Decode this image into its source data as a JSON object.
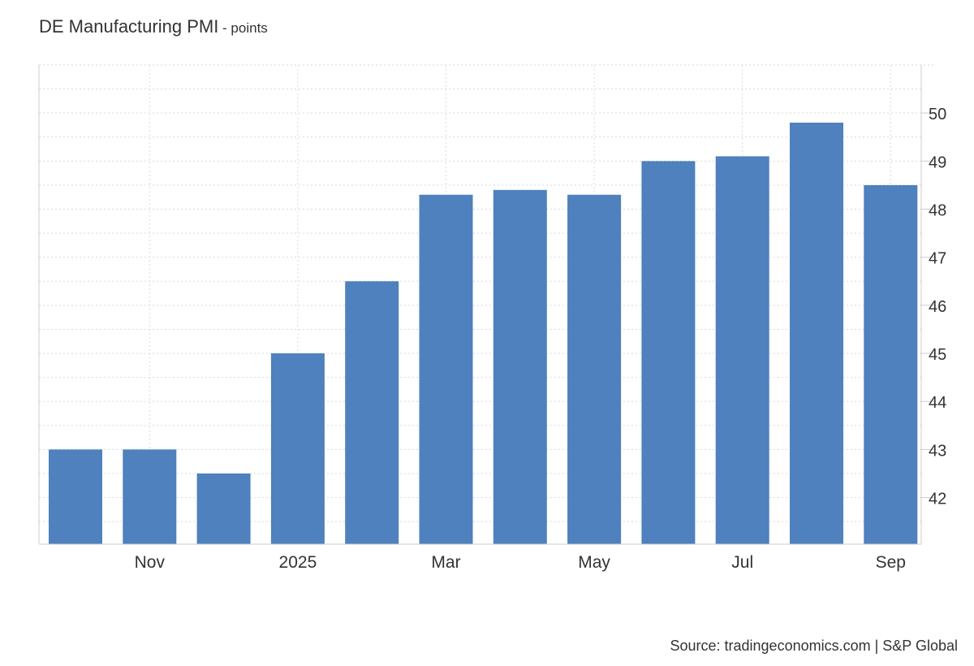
{
  "chart_data": {
    "type": "bar",
    "title": "DE Manufacturing PMI",
    "subtitle": "points",
    "xlabel": "",
    "ylabel": "",
    "categories": [
      "Oct 2024",
      "Nov 2024",
      "Dec 2024",
      "Jan 2025",
      "Feb 2025",
      "Mar 2025",
      "Apr 2025",
      "May 2025",
      "Jun 2025",
      "Jul 2025",
      "Aug 2025",
      "Sep 2025"
    ],
    "values": [
      43.0,
      43.0,
      42.5,
      45.0,
      46.5,
      48.3,
      48.4,
      48.3,
      49.0,
      49.1,
      49.8,
      48.5
    ],
    "x_tick_labels": [
      {
        "category": "Nov 2024",
        "label": "Nov"
      },
      {
        "category": "Jan 2025",
        "label": "2025"
      },
      {
        "category": "Mar 2025",
        "label": "Mar"
      },
      {
        "category": "May 2025",
        "label": "May"
      },
      {
        "category": "Jul 2025",
        "label": "Jul"
      },
      {
        "category": "Sep 2025",
        "label": "Sep"
      }
    ],
    "y_ticks": [
      42,
      43,
      44,
      45,
      46,
      47,
      48,
      49,
      50
    ],
    "ylim": [
      41.03,
      51
    ],
    "y_axis_position": "right",
    "grid": true,
    "legend": "none",
    "bar_color": "#4e81bd",
    "grid_color": "#d9d9d9",
    "axis_color": "#cccccc"
  },
  "source": {
    "text": "Source: tradingeconomics.com | S&P Global"
  }
}
